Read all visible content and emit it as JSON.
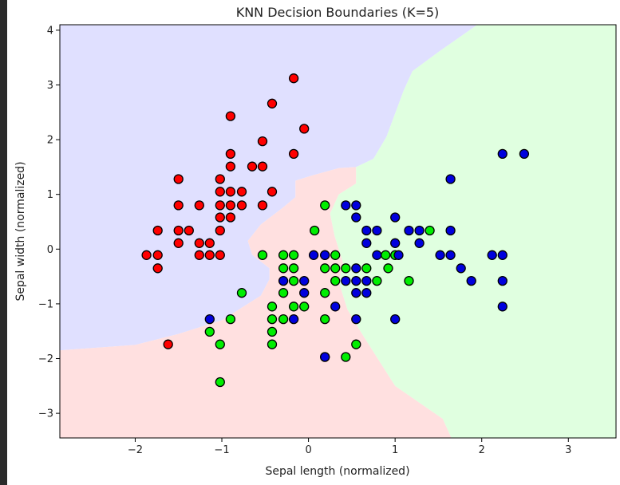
{
  "chart_data": {
    "type": "scatter",
    "title": "KNN Decision Boundaries (K=5)",
    "xlabel": "Sepal length (normalized)",
    "ylabel": "Sepal width (normalized)",
    "xlim": [
      -2.87,
      3.55
    ],
    "ylim": [
      -3.45,
      4.1
    ],
    "xticks": [
      -2,
      -1,
      0,
      1,
      2,
      3
    ],
    "yticks": [
      -3,
      -2,
      -1,
      0,
      1,
      2,
      3,
      4
    ],
    "xtick_labels": [
      "−2",
      "−1",
      "0",
      "1",
      "2",
      "3"
    ],
    "ytick_labels": [
      "−3",
      "−2",
      "−1",
      "0",
      "1",
      "2",
      "3",
      "4"
    ],
    "grid": false,
    "legend": "none",
    "region_colors": {
      "red": "#ffe0e0",
      "green": "#e0ffe0",
      "blue": "#e0e0ff"
    },
    "regions": [
      {
        "class": "blue",
        "points": [
          [
            -2.87,
            -1.85
          ],
          [
            -2.0,
            -1.75
          ],
          [
            -1.5,
            -1.55
          ],
          [
            -1.0,
            -1.3
          ],
          [
            -0.55,
            -0.85
          ],
          [
            -0.45,
            -0.55
          ],
          [
            -0.45,
            -0.35
          ],
          [
            -0.65,
            -0.1
          ],
          [
            -0.7,
            0.15
          ],
          [
            -0.55,
            0.45
          ],
          [
            -0.3,
            0.75
          ],
          [
            -0.15,
            0.95
          ],
          [
            -0.15,
            1.25
          ],
          [
            0.05,
            1.35
          ],
          [
            0.35,
            1.48
          ],
          [
            0.55,
            1.5
          ],
          [
            0.75,
            1.65
          ],
          [
            0.9,
            2.05
          ],
          [
            1.1,
            2.9
          ],
          [
            1.2,
            3.25
          ],
          [
            1.5,
            3.6
          ],
          [
            1.95,
            4.1
          ],
          [
            -2.87,
            4.1
          ]
        ]
      },
      {
        "class": "red",
        "points": [
          [
            -2.87,
            -3.45
          ],
          [
            1.65,
            -3.45
          ],
          [
            1.55,
            -3.1
          ],
          [
            1.0,
            -2.5
          ],
          [
            0.8,
            -2.0
          ],
          [
            0.6,
            -1.5
          ],
          [
            0.45,
            -1.1
          ],
          [
            0.35,
            -0.6
          ],
          [
            0.4,
            -0.25
          ],
          [
            0.3,
            0.25
          ],
          [
            0.25,
            0.65
          ],
          [
            0.35,
            1.0
          ],
          [
            0.55,
            1.2
          ],
          [
            0.55,
            1.5
          ],
          [
            0.35,
            1.48
          ],
          [
            0.05,
            1.35
          ],
          [
            -0.15,
            1.25
          ],
          [
            -0.15,
            0.95
          ],
          [
            -0.3,
            0.75
          ],
          [
            -0.55,
            0.45
          ],
          [
            -0.7,
            0.15
          ],
          [
            -0.65,
            -0.1
          ],
          [
            -0.45,
            -0.35
          ],
          [
            -0.45,
            -0.55
          ],
          [
            -0.55,
            -0.85
          ],
          [
            -1.0,
            -1.3
          ],
          [
            -1.5,
            -1.55
          ],
          [
            -2.0,
            -1.75
          ],
          [
            -2.87,
            -1.85
          ]
        ]
      },
      {
        "class": "green",
        "points": [
          [
            1.65,
            -3.45
          ],
          [
            3.55,
            -3.45
          ],
          [
            3.55,
            4.1
          ],
          [
            1.95,
            4.1
          ],
          [
            1.5,
            3.6
          ],
          [
            1.2,
            3.25
          ],
          [
            1.1,
            2.9
          ],
          [
            0.9,
            2.05
          ],
          [
            0.75,
            1.65
          ],
          [
            0.55,
            1.5
          ],
          [
            0.55,
            1.2
          ],
          [
            0.35,
            1.0
          ],
          [
            0.25,
            0.65
          ],
          [
            0.3,
            0.25
          ],
          [
            0.4,
            -0.25
          ],
          [
            0.35,
            -0.6
          ],
          [
            0.45,
            -1.1
          ],
          [
            0.6,
            -1.5
          ],
          [
            0.8,
            -2.0
          ],
          [
            1.0,
            -2.5
          ],
          [
            1.55,
            -3.1
          ]
        ]
      }
    ],
    "series": [
      {
        "color": "#ff0000",
        "points": [
          [
            -0.17,
            3.12
          ],
          [
            -0.42,
            2.66
          ],
          [
            -0.9,
            2.43
          ],
          [
            -0.05,
            2.2
          ],
          [
            -0.53,
            1.97
          ],
          [
            -0.17,
            1.74
          ],
          [
            -0.9,
            1.74
          ],
          [
            -0.9,
            1.51
          ],
          [
            -0.65,
            1.51
          ],
          [
            -0.53,
            1.51
          ],
          [
            -1.5,
            1.28
          ],
          [
            -1.02,
            1.28
          ],
          [
            -0.42,
            1.05
          ],
          [
            -1.02,
            1.05
          ],
          [
            -0.9,
            1.05
          ],
          [
            -0.77,
            1.05
          ],
          [
            -1.26,
            0.8
          ],
          [
            -1.02,
            0.8
          ],
          [
            -0.9,
            0.8
          ],
          [
            -0.77,
            0.8
          ],
          [
            -0.53,
            0.8
          ],
          [
            -1.5,
            0.8
          ],
          [
            -1.02,
            0.58
          ],
          [
            -0.9,
            0.58
          ],
          [
            -1.74,
            0.34
          ],
          [
            -1.5,
            0.34
          ],
          [
            -1.38,
            0.34
          ],
          [
            -1.02,
            0.34
          ],
          [
            -1.26,
            0.11
          ],
          [
            -1.14,
            0.11
          ],
          [
            -1.5,
            0.11
          ],
          [
            -1.87,
            -0.11
          ],
          [
            -1.74,
            -0.11
          ],
          [
            -1.26,
            -0.11
          ],
          [
            -1.14,
            -0.11
          ],
          [
            -1.02,
            -0.11
          ],
          [
            -1.74,
            -0.35
          ],
          [
            -1.62,
            -1.74
          ]
        ]
      },
      {
        "color": "#00ee00",
        "points": [
          [
            0.19,
            0.8
          ],
          [
            0.07,
            0.34
          ],
          [
            1.4,
            0.34
          ],
          [
            -0.53,
            -0.11
          ],
          [
            -0.29,
            -0.11
          ],
          [
            -0.17,
            -0.11
          ],
          [
            0.19,
            -0.11
          ],
          [
            0.31,
            -0.11
          ],
          [
            0.89,
            -0.11
          ],
          [
            1.0,
            -0.11
          ],
          [
            -0.29,
            -0.35
          ],
          [
            -0.17,
            -0.35
          ],
          [
            0.19,
            -0.35
          ],
          [
            0.31,
            -0.35
          ],
          [
            0.43,
            -0.35
          ],
          [
            0.67,
            -0.35
          ],
          [
            0.92,
            -0.35
          ],
          [
            -0.17,
            -0.58
          ],
          [
            0.31,
            -0.58
          ],
          [
            0.79,
            -0.58
          ],
          [
            1.16,
            -0.58
          ],
          [
            -0.77,
            -0.8
          ],
          [
            -0.29,
            -0.8
          ],
          [
            0.19,
            -0.8
          ],
          [
            -0.42,
            -1.05
          ],
          [
            -0.17,
            -1.05
          ],
          [
            -0.05,
            -1.05
          ],
          [
            -1.14,
            -1.51
          ],
          [
            -0.9,
            -1.28
          ],
          [
            -0.42,
            -1.28
          ],
          [
            -0.29,
            -1.28
          ],
          [
            -0.42,
            -1.51
          ],
          [
            0.19,
            -1.28
          ],
          [
            -1.02,
            -1.74
          ],
          [
            -0.42,
            -1.74
          ],
          [
            0.55,
            -1.74
          ],
          [
            0.19,
            -1.97
          ],
          [
            0.43,
            -1.97
          ],
          [
            -1.02,
            -2.43
          ]
        ]
      },
      {
        "color": "#0000dd",
        "points": [
          [
            2.24,
            1.74
          ],
          [
            2.49,
            1.74
          ],
          [
            1.64,
            1.28
          ],
          [
            0.43,
            0.8
          ],
          [
            0.55,
            0.8
          ],
          [
            0.55,
            0.58
          ],
          [
            1.0,
            0.58
          ],
          [
            0.67,
            0.34
          ],
          [
            0.79,
            0.34
          ],
          [
            1.16,
            0.34
          ],
          [
            1.28,
            0.34
          ],
          [
            1.64,
            0.34
          ],
          [
            0.67,
            0.11
          ],
          [
            1.0,
            0.11
          ],
          [
            1.28,
            0.11
          ],
          [
            0.06,
            -0.11
          ],
          [
            0.19,
            -0.11
          ],
          [
            0.79,
            -0.11
          ],
          [
            1.04,
            -0.11
          ],
          [
            1.52,
            -0.11
          ],
          [
            1.64,
            -0.11
          ],
          [
            2.12,
            -0.11
          ],
          [
            2.24,
            -0.11
          ],
          [
            0.55,
            -0.35
          ],
          [
            1.76,
            -0.35
          ],
          [
            -0.29,
            -0.58
          ],
          [
            -0.05,
            -0.58
          ],
          [
            0.43,
            -0.58
          ],
          [
            0.55,
            -0.58
          ],
          [
            0.67,
            -0.58
          ],
          [
            1.88,
            -0.58
          ],
          [
            2.24,
            -0.58
          ],
          [
            -0.05,
            -0.8
          ],
          [
            0.55,
            -0.8
          ],
          [
            0.67,
            -0.8
          ],
          [
            0.31,
            -1.05
          ],
          [
            2.24,
            -1.05
          ],
          [
            -1.14,
            -1.28
          ],
          [
            -0.17,
            -1.28
          ],
          [
            0.55,
            -1.28
          ],
          [
            1.0,
            -1.28
          ],
          [
            0.19,
            -1.97
          ]
        ]
      }
    ]
  }
}
